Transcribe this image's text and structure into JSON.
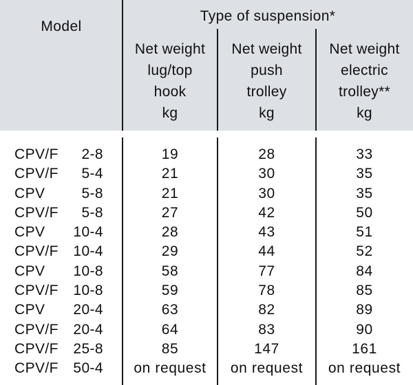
{
  "header": {
    "model_label": "Model",
    "suspension_label": "Type of suspension*",
    "columns": [
      {
        "label": "Net weight\nlug/top\nhook\nkg"
      },
      {
        "label": "Net weight\npush\ntrolley\nkg"
      },
      {
        "label": "Net weight\nelectric\ntrolley**\nkg"
      }
    ]
  },
  "rows": [
    {
      "model_prefix": "CPV/F",
      "model_size": "2-8",
      "values": [
        "19",
        "28",
        "33"
      ]
    },
    {
      "model_prefix": "CPV/F",
      "model_size": "5-4",
      "values": [
        "21",
        "30",
        "35"
      ]
    },
    {
      "model_prefix": "CPV",
      "model_size": "5-8",
      "values": [
        "21",
        "30",
        "35"
      ]
    },
    {
      "model_prefix": "CPV/F",
      "model_size": "5-8",
      "values": [
        "27",
        "42",
        "50"
      ]
    },
    {
      "model_prefix": "CPV",
      "model_size": "10-4",
      "values": [
        "28",
        "43",
        "51"
      ]
    },
    {
      "model_prefix": "CPV/F",
      "model_size": "10-4",
      "values": [
        "29",
        "44",
        "52"
      ]
    },
    {
      "model_prefix": "CPV",
      "model_size": "10-8",
      "values": [
        "58",
        "77",
        "84"
      ]
    },
    {
      "model_prefix": "CPV/F",
      "model_size": "10-8",
      "values": [
        "59",
        "78",
        "85"
      ]
    },
    {
      "model_prefix": "CPV",
      "model_size": "20-4",
      "values": [
        "63",
        "82",
        "89"
      ]
    },
    {
      "model_prefix": "CPV/F",
      "model_size": "20-4",
      "values": [
        "64",
        "83",
        "90"
      ]
    },
    {
      "model_prefix": "CPV/F",
      "model_size": "25-8",
      "values": [
        "85",
        "147",
        "161"
      ]
    },
    {
      "model_prefix": "CPV/F",
      "model_size": "50-4",
      "values": [
        "on request",
        "on request",
        "on request"
      ]
    }
  ],
  "colors": {
    "header_background": "#dde0e4",
    "divider_line": "#18181a",
    "text": "#101013"
  }
}
